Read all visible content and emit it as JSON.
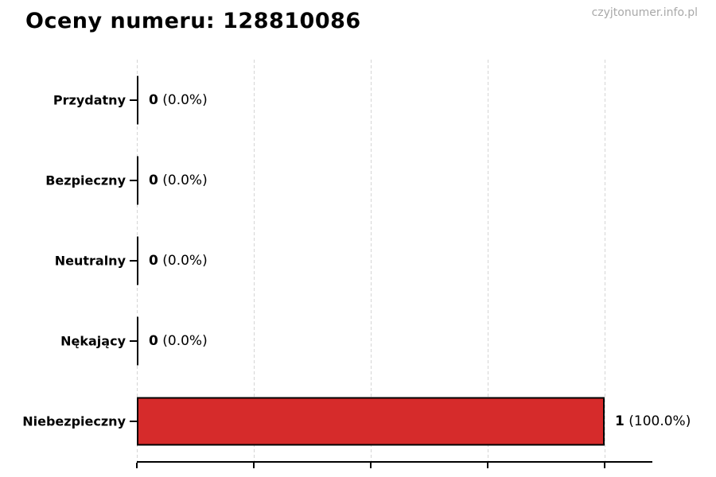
{
  "chart_data": {
    "type": "bar",
    "orientation": "horizontal",
    "title": "Oceny numeru: 128810086",
    "watermark": "czyjtonumer.info.pl",
    "categories": [
      "Przydatny",
      "Bezpieczny",
      "Neutralny",
      "Nękający",
      "Niebezpieczny"
    ],
    "values": [
      0,
      0,
      0,
      0,
      1
    ],
    "value_labels": [
      {
        "count": "0",
        "pct": "(0.0%)"
      },
      {
        "count": "0",
        "pct": "(0.0%)"
      },
      {
        "count": "0",
        "pct": "(0.0%)"
      },
      {
        "count": "0",
        "pct": "(0.0%)"
      },
      {
        "count": "1",
        "pct": "(100.0%)"
      }
    ],
    "xlim": [
      0,
      1.1
    ],
    "xticks": [
      0,
      0.25,
      0.5,
      0.75,
      1.0
    ],
    "x_tick_labels_visible": false,
    "grid": {
      "axis": "x",
      "style": "dashed",
      "color": "#d5d5d5"
    },
    "legend": "none",
    "bar_color": "#d62b2b",
    "bar_edge_color": "#000000",
    "zero_marker_color": "#000000",
    "title_color": "#000000",
    "watermark_color": "#a9a9a9"
  }
}
